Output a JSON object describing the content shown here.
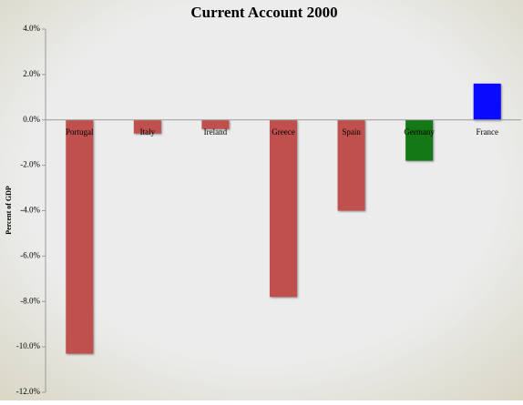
{
  "chart_data": {
    "type": "bar",
    "title": "Current Account 2000",
    "y_label": "Percent of GDP",
    "categories": [
      "Portugal",
      "Italy",
      "Ireland",
      "Greece",
      "Spain",
      "Germany",
      "France"
    ],
    "values": [
      -10.3,
      -0.6,
      -0.4,
      -7.8,
      -4.0,
      -1.8,
      1.6
    ],
    "colors": [
      "#c0504d",
      "#c0504d",
      "#c0504d",
      "#c0504d",
      "#c0504d",
      "#147814",
      "#0a0aff"
    ],
    "ylim": [
      -12,
      4
    ],
    "yticks": [
      {
        "value": -12,
        "label": "-12.0%"
      },
      {
        "value": -10,
        "label": "-10.0%"
      },
      {
        "value": -8,
        "label": "-8.0%"
      },
      {
        "value": -6,
        "label": "-6.0%"
      },
      {
        "value": -4,
        "label": "-4.0%"
      },
      {
        "value": -2,
        "label": "-2.0%"
      },
      {
        "value": 0,
        "label": "0.0%"
      },
      {
        "value": 2,
        "label": "2.0%"
      },
      {
        "value": 4,
        "label": "4.0%"
      }
    ]
  }
}
